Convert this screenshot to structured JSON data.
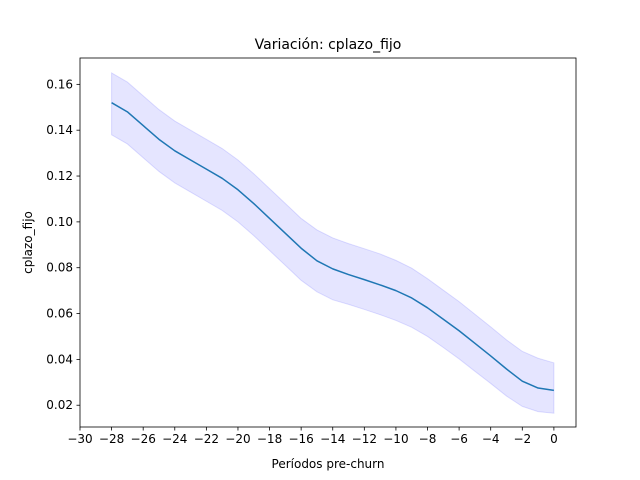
{
  "chart_data": {
    "type": "line",
    "title": "Variación: cplazo_fijo",
    "xlabel": "Períodos pre-churn",
    "ylabel": "cplazo_fijo",
    "xlim": [
      -30,
      1.4
    ],
    "ylim": [
      0.0105,
      0.1715
    ],
    "x_ticks": [
      -30,
      -28,
      -26,
      -24,
      -22,
      -20,
      -18,
      -16,
      -14,
      -12,
      -10,
      -8,
      -6,
      -4,
      -2,
      0
    ],
    "x_tick_labels": [
      "−30",
      "−28",
      "−26",
      "−24",
      "−22",
      "−20",
      "−18",
      "−16",
      "−14",
      "−12",
      "−10",
      "−8",
      "−6",
      "−4",
      "−2",
      "0"
    ],
    "y_ticks": [
      0.02,
      0.04,
      0.06,
      0.08,
      0.1,
      0.12,
      0.14,
      0.16
    ],
    "y_tick_labels": [
      "0.02",
      "0.04",
      "0.06",
      "0.08",
      "0.10",
      "0.12",
      "0.14",
      "0.16"
    ],
    "grid": false,
    "line_color": "#1f77b4",
    "band_color": "#0000ff",
    "series": [
      {
        "x": [
          -28,
          -27,
          -26,
          -25,
          -24,
          -23,
          -22,
          -21,
          -20,
          -19,
          -18,
          -17,
          -16,
          -15,
          -14,
          -13,
          -12,
          -11,
          -10,
          -9,
          -8,
          -7,
          -6,
          -5,
          -4,
          -3,
          -2,
          -1,
          0
        ],
        "values": [
          0.152,
          0.148,
          0.142,
          0.136,
          0.131,
          0.127,
          0.123,
          0.119,
          0.114,
          0.108,
          0.1015,
          0.095,
          0.0885,
          0.083,
          0.0795,
          0.077,
          0.0748,
          0.0725,
          0.07,
          0.0668,
          0.0625,
          0.0575,
          0.0525,
          0.047,
          0.0415,
          0.0358,
          0.0305,
          0.0275,
          0.0265
        ],
        "lower": [
          0.138,
          0.134,
          0.128,
          0.122,
          0.117,
          0.113,
          0.109,
          0.105,
          0.1,
          0.094,
          0.0875,
          0.081,
          0.0745,
          0.0695,
          0.066,
          0.064,
          0.0618,
          0.0595,
          0.057,
          0.054,
          0.05,
          0.0452,
          0.0402,
          0.0348,
          0.0295,
          0.024,
          0.0195,
          0.0172,
          0.0165
        ],
        "upper": [
          0.165,
          0.161,
          0.155,
          0.149,
          0.144,
          0.14,
          0.136,
          0.132,
          0.127,
          0.121,
          0.1145,
          0.108,
          0.1015,
          0.0965,
          0.093,
          0.0905,
          0.0883,
          0.086,
          0.0832,
          0.0798,
          0.0752,
          0.0702,
          0.0652,
          0.0597,
          0.0542,
          0.0485,
          0.0435,
          0.0405,
          0.0385
        ]
      }
    ]
  }
}
